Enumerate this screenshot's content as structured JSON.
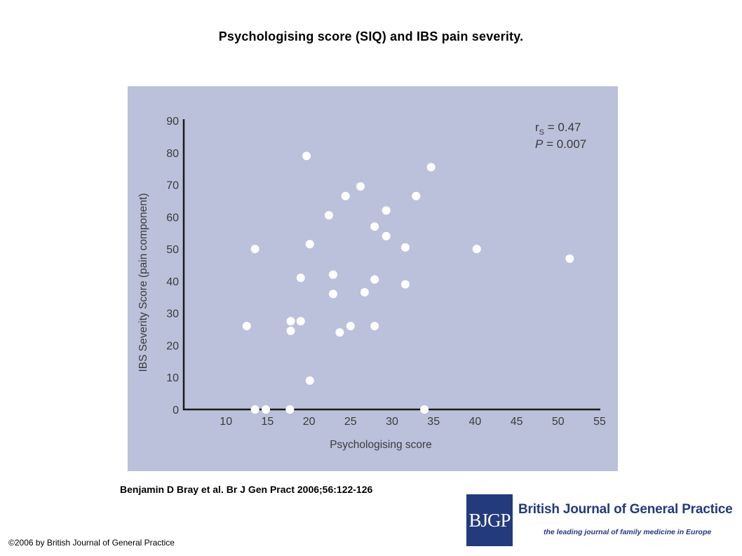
{
  "slide": {
    "title": "Psychologising score (SIQ) and IBS pain severity.",
    "citation": "Benjamin D Bray et al. Br J Gen Pract 2006;56:122-126",
    "copyright": "©2006 by British Journal of General Practice"
  },
  "banner": {
    "logo_text": "BJGP",
    "journal_name": "British Journal of General Practice",
    "tagline": "the leading journal of family medicine in Europe"
  },
  "colors": {
    "panel_background": "#bbc1da",
    "axis": "#1a1a1a",
    "points": "#ffffff",
    "banner_blue": "#233a7d"
  },
  "chart_data": {
    "type": "scatter",
    "title": "",
    "xlabel": "Psychologising score",
    "ylabel": "IBS Severity Score (pain component)",
    "xlim": [
      5,
      55
    ],
    "ylim": [
      0,
      90
    ],
    "x_ticks": [
      10,
      15,
      20,
      25,
      30,
      35,
      40,
      45,
      50,
      55
    ],
    "y_ticks": [
      0,
      10,
      20,
      30,
      40,
      50,
      60,
      70,
      80,
      90
    ],
    "grid": false,
    "legend": null,
    "annotation": {
      "r_label": "r",
      "r_subscript": "S",
      "r_value": " = 0.47",
      "p_label": "P",
      "p_value": " = 0.007"
    },
    "series": [
      {
        "points": [
          {
            "x": 12.5,
            "y": 26
          },
          {
            "x": 13.5,
            "y": 50
          },
          {
            "x": 13.5,
            "y": 0
          },
          {
            "x": 14.8,
            "y": 0
          },
          {
            "x": 17.7,
            "y": 0
          },
          {
            "x": 17.8,
            "y": 27.5
          },
          {
            "x": 17.8,
            "y": 24.5
          },
          {
            "x": 19.0,
            "y": 41
          },
          {
            "x": 19.0,
            "y": 27.5
          },
          {
            "x": 19.7,
            "y": 79
          },
          {
            "x": 20.1,
            "y": 51.5
          },
          {
            "x": 20.1,
            "y": 9
          },
          {
            "x": 22.4,
            "y": 60.5
          },
          {
            "x": 22.9,
            "y": 42
          },
          {
            "x": 22.9,
            "y": 36
          },
          {
            "x": 23.7,
            "y": 24
          },
          {
            "x": 24.4,
            "y": 66.5
          },
          {
            "x": 25.0,
            "y": 26
          },
          {
            "x": 26.2,
            "y": 69.5
          },
          {
            "x": 26.7,
            "y": 36.5
          },
          {
            "x": 27.9,
            "y": 57
          },
          {
            "x": 27.9,
            "y": 40.5
          },
          {
            "x": 27.9,
            "y": 26
          },
          {
            "x": 29.3,
            "y": 62
          },
          {
            "x": 29.3,
            "y": 54
          },
          {
            "x": 31.6,
            "y": 50.5
          },
          {
            "x": 31.6,
            "y": 39
          },
          {
            "x": 32.9,
            "y": 66.5
          },
          {
            "x": 33.9,
            "y": 0
          },
          {
            "x": 34.7,
            "y": 75.5
          },
          {
            "x": 40.2,
            "y": 50
          },
          {
            "x": 51.4,
            "y": 47
          }
        ]
      }
    ]
  }
}
